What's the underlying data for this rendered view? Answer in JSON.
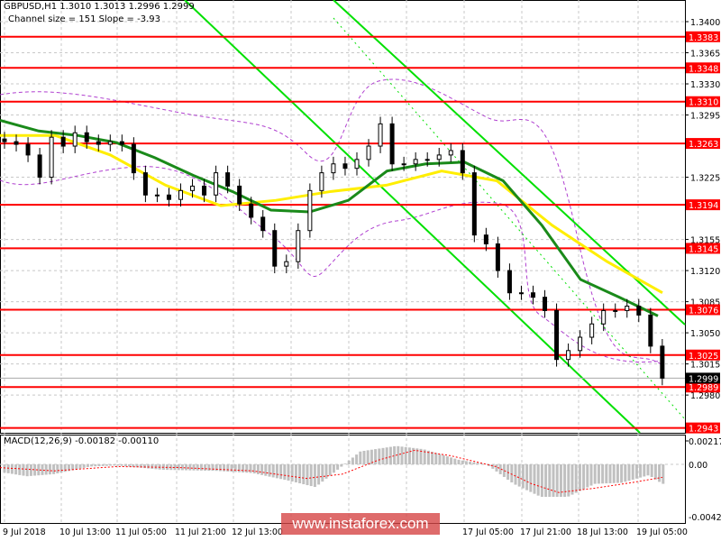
{
  "header": {
    "symbol_line": "GBPUSD,H1  1.3010 1.3013 1.2996 1.2999",
    "channel_line": "Channel size = 151 Slope = -3.93"
  },
  "macd": {
    "label": "MACD(12,26,9) -0.00182 -0.00110",
    "ticks": [
      "0.00217",
      "0.00",
      "-0.00429"
    ],
    "hist_points": [
      [
        0,
        -0.0007
      ],
      [
        30,
        -0.0011
      ],
      [
        60,
        -0.0009
      ],
      [
        100,
        -0.0002
      ],
      [
        130,
        -0.0001
      ],
      [
        180,
        -0.0005
      ],
      [
        240,
        -0.0006
      ],
      [
        280,
        -0.0008
      ],
      [
        320,
        -0.0015
      ],
      [
        350,
        -0.0021
      ],
      [
        370,
        -0.0008
      ],
      [
        400,
        0.0012
      ],
      [
        440,
        0.0017
      ],
      [
        470,
        0.0014
      ],
      [
        510,
        0.0004
      ],
      [
        540,
        0.0
      ],
      [
        570,
        -0.0018
      ],
      [
        600,
        -0.003
      ],
      [
        630,
        -0.003
      ],
      [
        660,
        -0.0018
      ],
      [
        690,
        -0.0017
      ],
      [
        720,
        -0.001
      ],
      [
        735,
        -0.0018
      ]
    ],
    "signal_points": [
      [
        0,
        -0.0003
      ],
      [
        60,
        -0.0006
      ],
      [
        130,
        -0.0002
      ],
      [
        200,
        -0.0003
      ],
      [
        280,
        -0.0006
      ],
      [
        340,
        -0.0013
      ],
      [
        380,
        -0.0009
      ],
      [
        420,
        0.0004
      ],
      [
        460,
        0.0013
      ],
      [
        500,
        0.0008
      ],
      [
        550,
        -0.0002
      ],
      [
        590,
        -0.0018
      ],
      [
        620,
        -0.0026
      ],
      [
        660,
        -0.0022
      ],
      [
        700,
        -0.0017
      ],
      [
        735,
        -0.0012
      ]
    ]
  },
  "chart_data": {
    "type": "candlestick",
    "symbol": "GBPUSD",
    "timeframe": "H1",
    "ylim": [
      1.293,
      1.342
    ],
    "price_ticks": [
      "1.3400",
      "1.3365",
      "1.3330",
      "1.3295",
      "1.3225",
      "1.3155",
      "1.3120",
      "1.3085",
      "1.3050",
      "1.3015",
      "1.2980"
    ],
    "time_labels": [
      "9 Jul 2018",
      "10 Jul 13:00",
      "11 Jul 05:00",
      "11 Jul 21:00",
      "12 Jul 13:00",
      "17 Jul 05:00",
      "17 Jul 21:00",
      "18 Jul 13:00",
      "19 Jul 05:00"
    ],
    "levels": [
      "1.3383",
      "1.3348",
      "1.3310",
      "1.3263",
      "1.3194",
      "1.3145",
      "1.3076",
      "1.3025",
      "1.2989",
      "1.2943"
    ],
    "current_price": "1.2999",
    "closes": [
      1.3265,
      1.3262,
      1.325,
      1.3225,
      1.327,
      1.326,
      1.3275,
      1.3265,
      1.3262,
      1.3265,
      1.3262,
      1.323,
      1.3205,
      1.3205,
      1.32,
      1.321,
      1.3215,
      1.3205,
      1.323,
      1.3215,
      1.3195,
      1.318,
      1.3165,
      1.3125,
      1.313,
      1.3165,
      1.321,
      1.323,
      1.324,
      1.3235,
      1.3245,
      1.326,
      1.3285,
      1.324,
      1.324,
      1.3245,
      1.3245,
      1.325,
      1.3255,
      1.323,
      1.316,
      1.315,
      1.312,
      1.3095,
      1.3095,
      1.309,
      1.3075,
      1.302,
      1.303,
      1.3045,
      1.306,
      1.3075,
      1.3075,
      1.308,
      1.307,
      1.3035,
      1.2999
    ],
    "ma_fast": [
      1.3289,
      1.3277,
      1.3272,
      1.3264,
      1.3247,
      1.3227,
      1.3209,
      1.3188,
      1.3186,
      1.3199,
      1.3232,
      1.324,
      1.3242,
      1.3221,
      1.3171,
      1.311,
      1.309,
      1.3069
    ],
    "ma_slow": [
      1.3272,
      1.3272,
      1.325,
      1.3216,
      1.3193,
      1.3199,
      1.3209,
      1.3216,
      1.3232,
      1.3221,
      1.3171,
      1.313,
      1.3095
    ],
    "colors": {
      "level": "#ff0000",
      "channel": "#00e000",
      "ma_fast": "#1a8a1a",
      "ma_slow": "#ffee00",
      "candle": "#000000",
      "bands": "#b040d0",
      "hist": "#c0c0c0",
      "signal": "#ff0000"
    }
  },
  "watermark": "www.instaforex.com"
}
